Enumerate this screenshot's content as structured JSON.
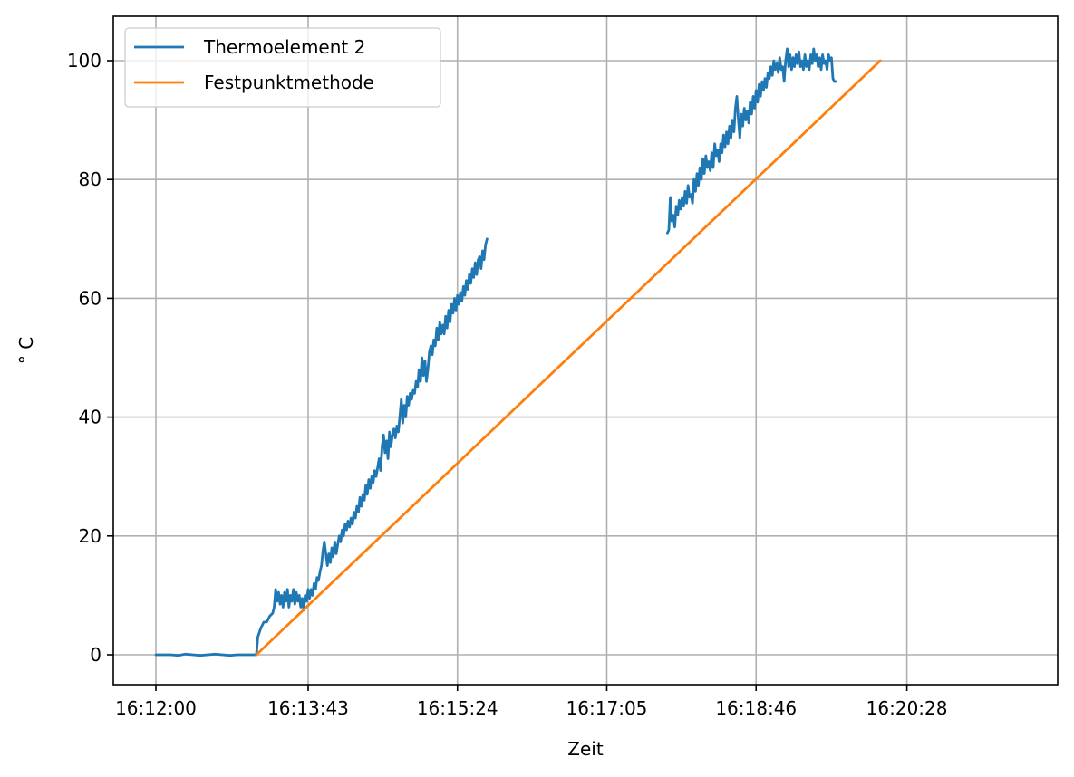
{
  "chart_data": {
    "type": "line",
    "title": "",
    "xlabel": "Zeit",
    "ylabel": "° C",
    "x_unit": "seconds after 16:12:00",
    "xlim_seconds": [
      -29,
      610
    ],
    "ylim": [
      -5,
      107
    ],
    "grid": true,
    "legend_position": "upper left",
    "x_ticks": [
      {
        "seconds": 0,
        "label": "16:12:00"
      },
      {
        "seconds": 103,
        "label": "16:13:43"
      },
      {
        "seconds": 204,
        "label": "16:15:24"
      },
      {
        "seconds": 305,
        "label": "16:17:05"
      },
      {
        "seconds": 406,
        "label": "16:18:46"
      },
      {
        "seconds": 508,
        "label": "16:20:28"
      }
    ],
    "y_ticks": [
      0,
      20,
      40,
      60,
      80,
      100
    ],
    "series": [
      {
        "name": "Thermoelement 2",
        "color": "#1f77b4",
        "segments": [
          [
            [
              0,
              0
            ],
            [
              5,
              0
            ],
            [
              10,
              0
            ],
            [
              15,
              -0.1
            ],
            [
              20,
              0.1
            ],
            [
              25,
              0
            ],
            [
              30,
              -0.1
            ],
            [
              35,
              0
            ],
            [
              40,
              0.1
            ],
            [
              45,
              0
            ],
            [
              50,
              -0.1
            ],
            [
              55,
              0
            ],
            [
              60,
              0
            ],
            [
              65,
              0
            ],
            [
              68,
              0
            ],
            [
              69,
              3
            ],
            [
              71,
              4.5
            ],
            [
              73,
              5.5
            ],
            [
              75,
              5.5
            ],
            [
              77,
              6.5
            ],
            [
              79,
              7
            ],
            [
              80,
              8
            ],
            [
              81,
              11
            ],
            [
              82,
              9
            ],
            [
              83,
              10.5
            ],
            [
              84,
              8.5
            ],
            [
              85,
              10
            ],
            [
              86,
              8
            ],
            [
              87,
              10.5
            ],
            [
              88,
              9
            ],
            [
              89,
              11
            ],
            [
              90,
              8
            ],
            [
              91,
              10
            ],
            [
              92,
              9
            ],
            [
              93,
              11
            ],
            [
              94,
              8.5
            ],
            [
              95,
              10.5
            ],
            [
              96,
              9
            ],
            [
              97,
              10
            ],
            [
              98,
              8
            ],
            [
              99,
              9.5
            ],
            [
              100,
              7.5
            ],
            [
              101,
              10
            ],
            [
              102,
              9
            ],
            [
              103,
              11
            ],
            [
              104,
              9.5
            ],
            [
              105,
              11
            ],
            [
              106,
              10
            ],
            [
              107,
              12
            ],
            [
              108,
              11
            ],
            [
              109,
              13
            ],
            [
              110,
              12.5
            ],
            [
              111,
              14
            ],
            [
              112,
              15
            ],
            [
              113,
              17.5
            ],
            [
              114,
              19
            ],
            [
              115,
              17
            ],
            [
              116,
              15
            ],
            [
              117,
              17
            ],
            [
              118,
              15.5
            ],
            [
              119,
              18
            ],
            [
              120,
              16.5
            ],
            [
              121,
              19
            ],
            [
              122,
              17
            ],
            [
              123,
              18.5
            ],
            [
              124,
              20
            ],
            [
              125,
              19
            ],
            [
              126,
              21
            ],
            [
              127,
              20
            ],
            [
              128,
              22
            ],
            [
              129,
              21
            ],
            [
              130,
              22.5
            ],
            [
              131,
              21.5
            ],
            [
              132,
              23
            ],
            [
              133,
              22
            ],
            [
              134,
              24
            ],
            [
              135,
              23
            ],
            [
              136,
              25
            ],
            [
              137,
              24
            ],
            [
              138,
              26.5
            ],
            [
              139,
              25
            ],
            [
              140,
              27
            ],
            [
              141,
              26
            ],
            [
              142,
              28.5
            ],
            [
              143,
              27
            ],
            [
              144,
              29.5
            ],
            [
              145,
              28
            ],
            [
              146,
              30
            ],
            [
              147,
              29
            ],
            [
              148,
              31
            ],
            [
              149,
              30
            ],
            [
              150,
              31.5
            ],
            [
              151,
              33
            ],
            [
              152,
              31
            ],
            [
              153,
              35
            ],
            [
              154,
              37
            ],
            [
              155,
              34
            ],
            [
              156,
              36
            ],
            [
              157,
              33
            ],
            [
              158,
              37.5
            ],
            [
              159,
              35
            ],
            [
              160,
              37
            ],
            [
              161,
              38
            ],
            [
              162,
              36.5
            ],
            [
              163,
              38.5
            ],
            [
              164,
              37.5
            ],
            [
              165,
              40
            ],
            [
              166,
              43
            ],
            [
              167,
              39
            ],
            [
              168,
              42
            ],
            [
              169,
              40
            ],
            [
              170,
              43.5
            ],
            [
              171,
              42
            ],
            [
              172,
              44
            ],
            [
              173,
              43
            ],
            [
              174,
              44.5
            ],
            [
              175,
              44
            ],
            [
              176,
              46
            ],
            [
              177,
              45
            ],
            [
              178,
              48
            ],
            [
              179,
              46
            ],
            [
              180,
              50
            ],
            [
              181,
              47
            ],
            [
              182,
              49.5
            ],
            [
              183,
              46
            ],
            [
              184,
              48
            ],
            [
              185,
              51
            ],
            [
              186,
              52
            ],
            [
              187,
              50.5
            ],
            [
              188,
              53
            ],
            [
              189,
              52
            ],
            [
              190,
              55
            ],
            [
              191,
              53
            ],
            [
              192,
              56
            ],
            [
              193,
              54
            ],
            [
              194,
              55.5
            ],
            [
              195,
              54
            ],
            [
              196,
              57
            ],
            [
              197,
              55
            ],
            [
              198,
              58
            ],
            [
              199,
              56
            ],
            [
              200,
              59
            ],
            [
              201,
              57.5
            ],
            [
              202,
              60
            ],
            [
              203,
              58
            ],
            [
              204,
              60.5
            ],
            [
              205,
              59
            ],
            [
              206,
              61
            ],
            [
              207,
              59.5
            ],
            [
              208,
              62
            ],
            [
              209,
              60.5
            ],
            [
              210,
              63
            ],
            [
              211,
              61.5
            ],
            [
              212,
              64
            ],
            [
              213,
              62.5
            ],
            [
              214,
              65
            ],
            [
              215,
              63.5
            ],
            [
              216,
              66
            ],
            [
              217,
              64
            ],
            [
              218,
              66.5
            ],
            [
              219,
              67
            ],
            [
              220,
              65
            ],
            [
              221,
              68
            ],
            [
              222,
              66.5
            ],
            [
              223,
              69
            ],
            [
              224,
              70
            ]
          ],
          [
            [
              346,
              71
            ],
            [
              347,
              71.5
            ],
            [
              348,
              77
            ],
            [
              349,
              73
            ],
            [
              350,
              74
            ],
            [
              351,
              72
            ],
            [
              352,
              75.5
            ],
            [
              353,
              74
            ],
            [
              354,
              76.5
            ],
            [
              355,
              75
            ],
            [
              356,
              77
            ],
            [
              357,
              75.5
            ],
            [
              358,
              78
            ],
            [
              359,
              76
            ],
            [
              360,
              79
            ],
            [
              361,
              77
            ],
            [
              362,
              77.5
            ],
            [
              363,
              76
            ],
            [
              364,
              80
            ],
            [
              365,
              78
            ],
            [
              366,
              81
            ],
            [
              367,
              79
            ],
            [
              368,
              82
            ],
            [
              369,
              80
            ],
            [
              370,
              83.5
            ],
            [
              371,
              81
            ],
            [
              372,
              84
            ],
            [
              373,
              82
            ],
            [
              374,
              83
            ],
            [
              375,
              81.5
            ],
            [
              376,
              84.5
            ],
            [
              377,
              82
            ],
            [
              378,
              86
            ],
            [
              379,
              84
            ],
            [
              380,
              85
            ],
            [
              381,
              83
            ],
            [
              382,
              86
            ],
            [
              383,
              84.5
            ],
            [
              384,
              87.5
            ],
            [
              385,
              85.5
            ],
            [
              386,
              88
            ],
            [
              387,
              86
            ],
            [
              388,
              89
            ],
            [
              389,
              87
            ],
            [
              390,
              90
            ],
            [
              391,
              88
            ],
            [
              392,
              92
            ],
            [
              393,
              94
            ],
            [
              394,
              90
            ],
            [
              395,
              87
            ],
            [
              396,
              91
            ],
            [
              397,
              89
            ],
            [
              398,
              92
            ],
            [
              399,
              90
            ],
            [
              400,
              91.5
            ],
            [
              401,
              89.5
            ],
            [
              402,
              93
            ],
            [
              403,
              91
            ],
            [
              404,
              94
            ],
            [
              405,
              92
            ],
            [
              406,
              95
            ],
            [
              407,
              93
            ],
            [
              408,
              96
            ],
            [
              409,
              94
            ],
            [
              410,
              96.5
            ],
            [
              411,
              95
            ],
            [
              412,
              97
            ],
            [
              413,
              95.5
            ],
            [
              414,
              98
            ],
            [
              415,
              97
            ],
            [
              416,
              99
            ],
            [
              417,
              97.5
            ],
            [
              418,
              100
            ],
            [
              419,
              98.5
            ],
            [
              420,
              99.5
            ],
            [
              421,
              98
            ],
            [
              422,
              100.5
            ],
            [
              423,
              98.5
            ],
            [
              424,
              99
            ],
            [
              425,
              96.5
            ],
            [
              426,
              100
            ],
            [
              427,
              102
            ],
            [
              428,
              99
            ],
            [
              429,
              101
            ],
            [
              430,
              98.5
            ],
            [
              431,
              100.5
            ],
            [
              432,
              99
            ],
            [
              433,
              101
            ],
            [
              434,
              99.5
            ],
            [
              435,
              101.5
            ],
            [
              436,
              99
            ],
            [
              437,
              100
            ],
            [
              438,
              98.5
            ],
            [
              439,
              101
            ],
            [
              440,
              99
            ],
            [
              441,
              100
            ],
            [
              442,
              98.5
            ],
            [
              443,
              101
            ],
            [
              444,
              99.5
            ],
            [
              445,
              102
            ],
            [
              446,
              100
            ],
            [
              447,
              101
            ],
            [
              448,
              99
            ],
            [
              449,
              100.5
            ],
            [
              450,
              98.5
            ],
            [
              451,
              101
            ],
            [
              452,
              99.5
            ],
            [
              453,
              100
            ],
            [
              454,
              98.5
            ],
            [
              455,
              101
            ],
            [
              456,
              100
            ],
            [
              457,
              100.5
            ],
            [
              458,
              97
            ],
            [
              459,
              96.5
            ],
            [
              460,
              96.5
            ]
          ]
        ]
      },
      {
        "name": "Festpunktmethode",
        "color": "#ff7f0e",
        "points": [
          [
            68,
            0
          ],
          [
            490,
            100
          ]
        ]
      }
    ]
  }
}
